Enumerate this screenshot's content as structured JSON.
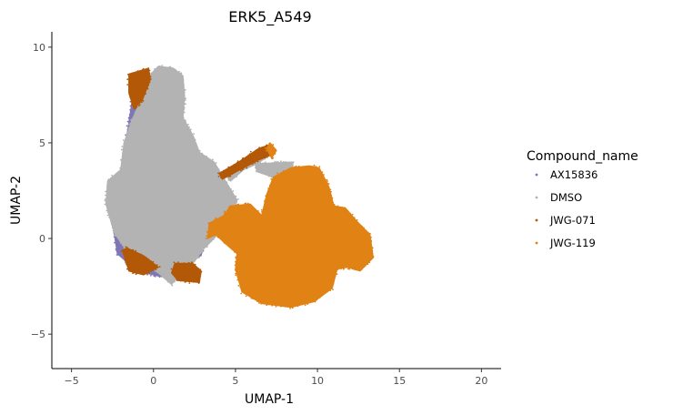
{
  "chart_data": {
    "type": "scatter",
    "title": "ERK5_A549",
    "xlabel": "UMAP-1",
    "ylabel": "UMAP-2",
    "xlim": [
      -6.2,
      21.2
    ],
    "ylim": [
      -6.8,
      10.8
    ],
    "xticks": [
      -5,
      0,
      5,
      10,
      15,
      20
    ],
    "yticks": [
      -5,
      0,
      5,
      10
    ],
    "xtick_labels": [
      "−5",
      "0",
      "5",
      "10",
      "15",
      "20"
    ],
    "ytick_labels": [
      "−5",
      "0",
      "5",
      "10"
    ],
    "grid": false,
    "legend": {
      "title": "Compound_name",
      "position": "right"
    },
    "series": [
      {
        "name": "AX15836",
        "color": "#7F77B5",
        "regions": [
          [
            [
              -0.9,
              8.2
            ],
            [
              -1.3,
              7.2
            ],
            [
              -1.6,
              5.5
            ],
            [
              -2.0,
              3.0
            ],
            [
              -2.5,
              0.8
            ],
            [
              -2.2,
              -0.8
            ],
            [
              -1.0,
              -1.7
            ],
            [
              0.5,
              -2.0
            ],
            [
              0.6,
              -1.2
            ],
            [
              -0.8,
              -0.6
            ],
            [
              -1.4,
              1.5
            ],
            [
              -0.9,
              4.0
            ],
            [
              -0.6,
              6.5
            ],
            [
              -0.4,
              8.0
            ]
          ],
          [
            [
              2.5,
              -0.4
            ],
            [
              3.1,
              -0.2
            ],
            [
              2.9,
              -0.9
            ],
            [
              2.4,
              -1.0
            ]
          ]
        ]
      },
      {
        "name": "DMSO",
        "color": "#B3B3B3",
        "regions": [
          [
            [
              0.3,
              9.0
            ],
            [
              1.2,
              8.9
            ],
            [
              1.8,
              8.5
            ],
            [
              1.9,
              7.4
            ],
            [
              1.8,
              6.3
            ],
            [
              2.4,
              5.4
            ],
            [
              2.8,
              4.5
            ],
            [
              3.7,
              4.0
            ],
            [
              4.4,
              3.0
            ],
            [
              5.1,
              2.0
            ],
            [
              4.7,
              1.0
            ],
            [
              3.8,
              0.1
            ],
            [
              3.0,
              -0.6
            ],
            [
              2.5,
              -1.2
            ],
            [
              1.7,
              -1.8
            ],
            [
              1.1,
              -2.4
            ],
            [
              0.3,
              -1.8
            ],
            [
              -0.5,
              -1.2
            ],
            [
              -1.5,
              -0.8
            ],
            [
              -2.4,
              0.3
            ],
            [
              -2.9,
              1.8
            ],
            [
              -2.8,
              3.0
            ],
            [
              -2.0,
              3.6
            ],
            [
              -1.8,
              5.0
            ],
            [
              -1.3,
              6.2
            ],
            [
              -0.8,
              7.2
            ],
            [
              -0.6,
              8.2
            ]
          ],
          [
            [
              4.5,
              3.2
            ],
            [
              5.7,
              3.8
            ],
            [
              6.5,
              4.2
            ],
            [
              7.0,
              4.3
            ],
            [
              6.3,
              3.9
            ],
            [
              5.5,
              3.6
            ],
            [
              4.7,
              3.0
            ]
          ],
          [
            [
              6.2,
              3.9
            ],
            [
              8.5,
              4.0
            ],
            [
              8.5,
              3.2
            ],
            [
              7.3,
              3.2
            ],
            [
              6.3,
              3.5
            ]
          ]
        ]
      },
      {
        "name": "JWG-071",
        "color": "#B35806",
        "regions": [
          [
            [
              -1.5,
              8.6
            ],
            [
              -0.3,
              8.9
            ],
            [
              -0.2,
              8.3
            ],
            [
              -0.7,
              7.2
            ],
            [
              -1.2,
              6.8
            ],
            [
              -1.5,
              7.6
            ]
          ],
          [
            [
              -1.9,
              -0.6
            ],
            [
              -1.5,
              -1.7
            ],
            [
              -0.6,
              -1.9
            ],
            [
              0.3,
              -1.5
            ],
            [
              -0.6,
              -0.9
            ],
            [
              -1.6,
              -0.5
            ]
          ],
          [
            [
              1.3,
              -1.3
            ],
            [
              2.4,
              -1.3
            ],
            [
              2.9,
              -1.7
            ],
            [
              2.8,
              -2.3
            ],
            [
              1.5,
              -2.2
            ],
            [
              1.1,
              -1.8
            ]
          ],
          [
            [
              4.0,
              3.4
            ],
            [
              5.2,
              4.0
            ],
            [
              6.4,
              4.7
            ],
            [
              7.1,
              4.9
            ],
            [
              7.3,
              4.4
            ],
            [
              6.4,
              4.1
            ],
            [
              5.3,
              3.6
            ],
            [
              4.2,
              3.1
            ]
          ]
        ]
      },
      {
        "name": "JWG-119",
        "color": "#E08214",
        "regions": [
          [
            [
              4.7,
              1.7
            ],
            [
              5.9,
              1.8
            ],
            [
              6.6,
              1.2
            ],
            [
              6.9,
              2.3
            ],
            [
              7.3,
              3.2
            ],
            [
              8.4,
              3.7
            ],
            [
              9.5,
              3.8
            ],
            [
              10.1,
              3.7
            ],
            [
              10.7,
              2.7
            ],
            [
              11.0,
              1.7
            ],
            [
              11.7,
              1.6
            ],
            [
              12.4,
              0.9
            ],
            [
              13.2,
              0.2
            ],
            [
              13.4,
              -1.0
            ],
            [
              12.6,
              -1.7
            ],
            [
              11.8,
              -1.5
            ],
            [
              11.2,
              -1.6
            ],
            [
              10.9,
              -2.6
            ],
            [
              9.8,
              -3.3
            ],
            [
              8.4,
              -3.6
            ],
            [
              6.6,
              -3.4
            ],
            [
              5.4,
              -2.8
            ],
            [
              5.0,
              -1.6
            ],
            [
              5.1,
              -0.8
            ],
            [
              4.3,
              -0.2
            ],
            [
              3.8,
              0.2
            ],
            [
              3.3,
              0.0
            ],
            [
              3.4,
              0.8
            ],
            [
              4.3,
              1.2
            ]
          ],
          [
            [
              7.1,
              5.0
            ],
            [
              7.5,
              4.6
            ],
            [
              7.2,
              4.2
            ],
            [
              6.9,
              4.7
            ]
          ]
        ]
      }
    ]
  }
}
